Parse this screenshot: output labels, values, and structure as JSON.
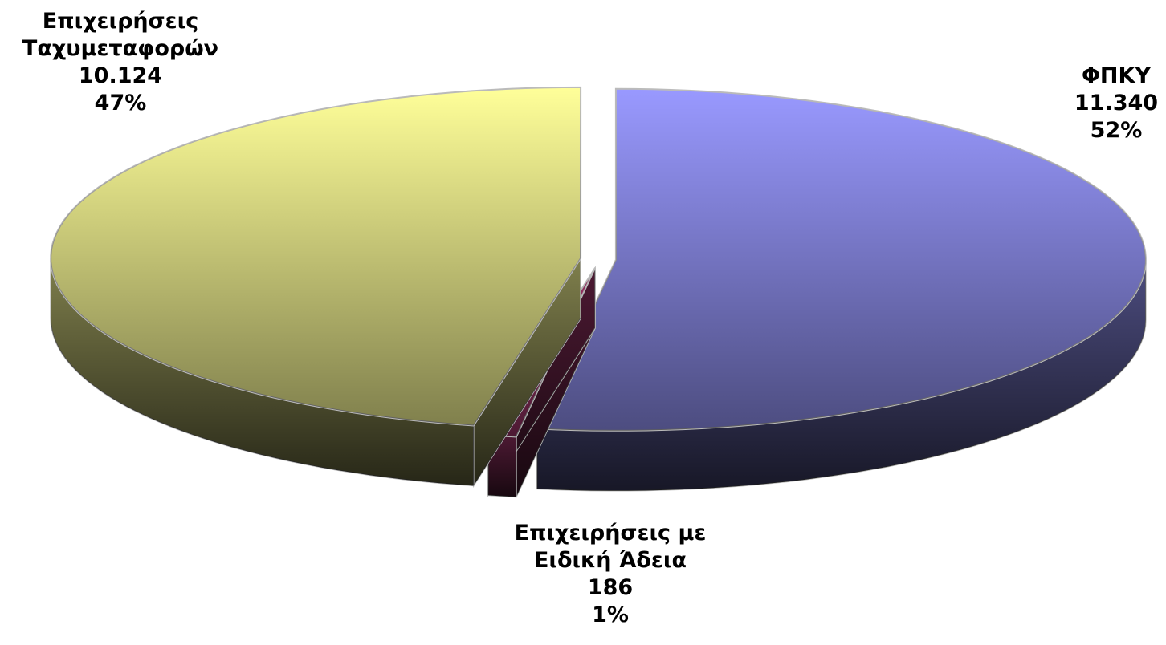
{
  "chart_data": {
    "type": "pie3d",
    "categories": [
      "ΦΠΚΥ",
      "Επιχειρήσεις με Ειδική Άδεια",
      "Επιχειρήσεις Ταχυμεταφορών"
    ],
    "values": [
      11340,
      186,
      10124
    ],
    "value_labels": [
      "11.340",
      "186",
      "10.124"
    ],
    "percent_labels": [
      "52%",
      "1%",
      "47%"
    ],
    "colors": [
      "#9999ff",
      "#993366",
      "#ffff99"
    ]
  }
}
